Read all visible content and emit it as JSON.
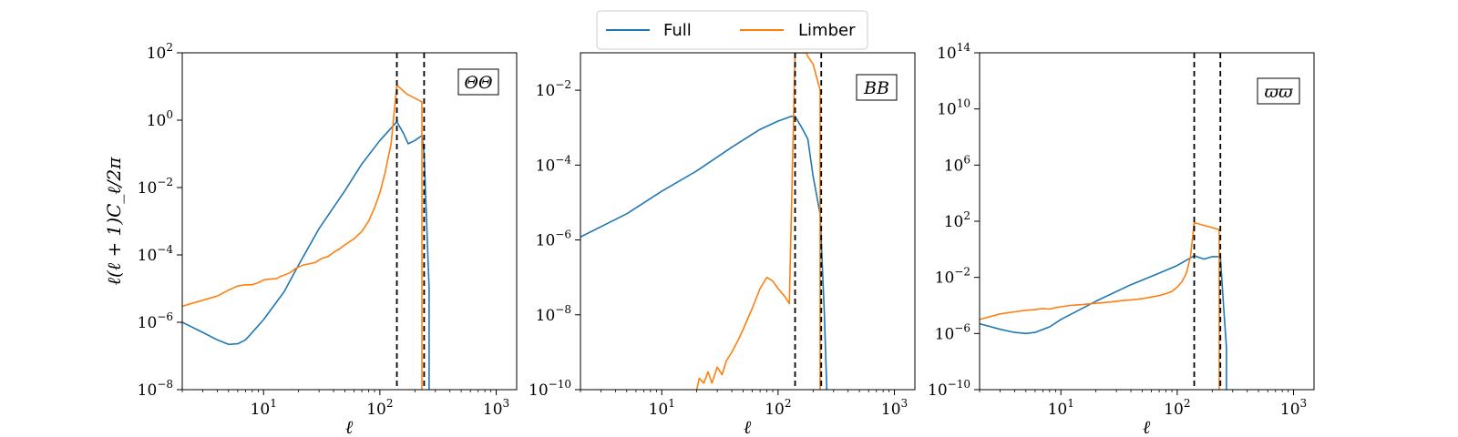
{
  "legend": {
    "items": [
      {
        "label": "Full",
        "color": "#1f77b4"
      },
      {
        "label": "Limber",
        "color": "#ff7f0e"
      }
    ]
  },
  "chart_data": [
    {
      "type": "line",
      "panel_label": "ΘΘ",
      "xlabel": "ℓ",
      "ylabel": "ℓ(ℓ + 1)C_ℓ/2π",
      "xscale": "log",
      "yscale": "log",
      "xlim": [
        2,
        1500
      ],
      "ylim": [
        1e-08,
        100
      ],
      "xticks": [
        {
          "v": 10,
          "base": "10",
          "exp": "1"
        },
        {
          "v": 100,
          "base": "10",
          "exp": "2"
        },
        {
          "v": 1000,
          "base": "10",
          "exp": "3"
        }
      ],
      "yticks": [
        {
          "v": 1e-08,
          "base": "10",
          "exp": "−8"
        },
        {
          "v": 1e-06,
          "base": "10",
          "exp": "−6"
        },
        {
          "v": 0.0001,
          "base": "10",
          "exp": "−4"
        },
        {
          "v": 0.01,
          "base": "10",
          "exp": "−2"
        },
        {
          "v": 1,
          "base": "10",
          "exp": "0"
        },
        {
          "v": 100,
          "base": "10",
          "exp": "2"
        }
      ],
      "vlines": [
        140,
        240
      ],
      "series": [
        {
          "name": "Full",
          "color": "#1f77b4",
          "points": [
            [
              2,
              1e-06
            ],
            [
              3,
              5e-07
            ],
            [
              4,
              3e-07
            ],
            [
              5,
              2.2e-07
            ],
            [
              6,
              2.3e-07
            ],
            [
              7,
              3e-07
            ],
            [
              8,
              5e-07
            ],
            [
              10,
              1.2e-06
            ],
            [
              15,
              8e-06
            ],
            [
              20,
              5e-05
            ],
            [
              30,
              0.0006
            ],
            [
              50,
              0.008
            ],
            [
              70,
              0.05
            ],
            [
              100,
              0.25
            ],
            [
              140,
              0.9
            ],
            [
              160,
              0.4
            ],
            [
              175,
              0.2
            ],
            [
              200,
              0.25
            ],
            [
              230,
              0.35
            ],
            [
              240,
              0.1
            ],
            [
              265,
              1e-05
            ],
            [
              265,
              1e-08
            ]
          ]
        },
        {
          "name": "Limber",
          "color": "#ff7f0e",
          "points": [
            [
              2,
              3e-06
            ],
            [
              3,
              4.5e-06
            ],
            [
              4,
              6e-06
            ],
            [
              5,
              9e-06
            ],
            [
              6,
              1.2e-05
            ],
            [
              7,
              1.3e-05
            ],
            [
              8,
              1.3e-05
            ],
            [
              9,
              1.5e-05
            ],
            [
              10,
              1.8e-05
            ],
            [
              11,
              1.9e-05
            ],
            [
              13,
              2e-05
            ],
            [
              14,
              2.3e-05
            ],
            [
              15,
              2.5e-05
            ],
            [
              17,
              3e-05
            ],
            [
              19,
              4e-05
            ],
            [
              22,
              5e-05
            ],
            [
              25,
              5.5e-05
            ],
            [
              28,
              6e-05
            ],
            [
              30,
              7e-05
            ],
            [
              32,
              8e-05
            ],
            [
              34,
              8.5e-05
            ],
            [
              36,
              9e-05
            ],
            [
              40,
              0.00012
            ],
            [
              45,
              0.00015
            ],
            [
              50,
              0.0002
            ],
            [
              60,
              0.0003
            ],
            [
              70,
              0.0005
            ],
            [
              80,
              0.001
            ],
            [
              90,
              0.0025
            ],
            [
              100,
              0.007
            ],
            [
              110,
              0.025
            ],
            [
              125,
              0.2
            ],
            [
              140,
              11
            ],
            [
              170,
              6
            ],
            [
              200,
              4.5
            ],
            [
              230,
              3.5
            ],
            [
              230,
              1e-08
            ]
          ]
        }
      ]
    },
    {
      "type": "line",
      "panel_label": "BB",
      "xlabel": "ℓ",
      "ylabel": "",
      "xscale": "log",
      "yscale": "log",
      "xlim": [
        2,
        1500
      ],
      "ylim": [
        1e-10,
        0.1
      ],
      "xticks": [
        {
          "v": 10,
          "base": "10",
          "exp": "1"
        },
        {
          "v": 100,
          "base": "10",
          "exp": "2"
        },
        {
          "v": 1000,
          "base": "10",
          "exp": "3"
        }
      ],
      "yticks": [
        {
          "v": 1e-10,
          "base": "10",
          "exp": "−10"
        },
        {
          "v": 1e-08,
          "base": "10",
          "exp": "−8"
        },
        {
          "v": 1e-06,
          "base": "10",
          "exp": "−6"
        },
        {
          "v": 0.0001,
          "base": "10",
          "exp": "−4"
        },
        {
          "v": 0.01,
          "base": "10",
          "exp": "−2"
        }
      ],
      "vlines": [
        140,
        235
      ],
      "series": [
        {
          "name": "Full",
          "color": "#1f77b4",
          "points": [
            [
              2,
              1.2e-06
            ],
            [
              5,
              5e-06
            ],
            [
              10,
              2e-05
            ],
            [
              20,
              7e-05
            ],
            [
              40,
              0.0003
            ],
            [
              70,
              0.0009
            ],
            [
              100,
              0.0015
            ],
            [
              130,
              0.002
            ],
            [
              140,
              0.002
            ],
            [
              160,
              0.001
            ],
            [
              180,
              0.0005
            ],
            [
              200,
              5e-05
            ],
            [
              230,
              5e-06
            ],
            [
              250,
              1e-08
            ],
            [
              262,
              1e-10
            ]
          ]
        },
        {
          "name": "Limber",
          "color": "#ff7f0e",
          "points": [
            [
              20,
              1e-10
            ],
            [
              21,
              2e-10
            ],
            [
              23,
              1.5e-10
            ],
            [
              25,
              3e-10
            ],
            [
              27,
              1.5e-10
            ],
            [
              30,
              4e-10
            ],
            [
              33,
              2.5e-10
            ],
            [
              36,
              6e-10
            ],
            [
              40,
              1e-09
            ],
            [
              45,
              2e-09
            ],
            [
              50,
              4e-09
            ],
            [
              60,
              1.5e-08
            ],
            [
              70,
              5e-08
            ],
            [
              80,
              1e-07
            ],
            [
              90,
              8e-08
            ],
            [
              100,
              5e-08
            ],
            [
              115,
              3e-08
            ],
            [
              125,
              2e-08
            ],
            [
              140,
              0.1
            ],
            [
              175,
              0.1
            ],
            [
              180,
              0.08
            ],
            [
              200,
              0.05
            ],
            [
              230,
              0.01
            ],
            [
              230,
              1e-10
            ]
          ]
        }
      ]
    },
    {
      "type": "line",
      "panel_label": "ϖϖ",
      "xlabel": "ℓ",
      "ylabel": "",
      "xscale": "log",
      "yscale": "log",
      "xlim": [
        2,
        1500
      ],
      "ylim": [
        1e-10,
        100000000000000.0
      ],
      "xticks": [
        {
          "v": 10,
          "base": "10",
          "exp": "1"
        },
        {
          "v": 100,
          "base": "10",
          "exp": "2"
        },
        {
          "v": 1000,
          "base": "10",
          "exp": "3"
        }
      ],
      "yticks": [
        {
          "v": 1e-10,
          "base": "10",
          "exp": "−10"
        },
        {
          "v": 1e-06,
          "base": "10",
          "exp": "−6"
        },
        {
          "v": 0.01,
          "base": "10",
          "exp": "−2"
        },
        {
          "v": 100,
          "base": "10",
          "exp": "2"
        },
        {
          "v": 1000000.0,
          "base": "10",
          "exp": "6"
        },
        {
          "v": 10000000000.0,
          "base": "10",
          "exp": "10"
        },
        {
          "v": 100000000000000.0,
          "base": "10",
          "exp": "14"
        }
      ],
      "vlines": [
        140,
        235
      ],
      "series": [
        {
          "name": "Full",
          "color": "#1f77b4",
          "points": [
            [
              2,
              5e-06
            ],
            [
              3,
              2e-06
            ],
            [
              4,
              1.2e-06
            ],
            [
              5,
              1e-06
            ],
            [
              6,
              1.2e-06
            ],
            [
              8,
              3e-06
            ],
            [
              10,
              1e-05
            ],
            [
              20,
              0.0002
            ],
            [
              40,
              0.003
            ],
            [
              70,
              0.02
            ],
            [
              100,
              0.07
            ],
            [
              140,
              0.35
            ],
            [
              170,
              0.2
            ],
            [
              200,
              0.3
            ],
            [
              235,
              0.3
            ],
            [
              250,
              0.0001
            ],
            [
              265,
              1e-07
            ],
            [
              265,
              1e-10
            ]
          ]
        },
        {
          "name": "Limber",
          "color": "#ff7f0e",
          "points": [
            [
              2,
              1e-05
            ],
            [
              3,
              2.5e-05
            ],
            [
              4,
              3.5e-05
            ],
            [
              5,
              4.5e-05
            ],
            [
              6,
              5e-05
            ],
            [
              7,
              6e-05
            ],
            [
              8,
              5.5e-05
            ],
            [
              9,
              7e-05
            ],
            [
              10,
              8e-05
            ],
            [
              12,
              0.0001
            ],
            [
              14,
              0.00011
            ],
            [
              16,
              0.00012
            ],
            [
              18,
              0.00013
            ],
            [
              20,
              0.00014
            ],
            [
              23,
              0.00016
            ],
            [
              26,
              0.00017
            ],
            [
              30,
              0.0002
            ],
            [
              35,
              0.00023
            ],
            [
              40,
              0.00025
            ],
            [
              50,
              0.0003
            ],
            [
              60,
              0.0004
            ],
            [
              70,
              0.0005
            ],
            [
              80,
              0.0007
            ],
            [
              90,
              0.001
            ],
            [
              100,
              0.002
            ],
            [
              110,
              0.005
            ],
            [
              120,
              0.02
            ],
            [
              130,
              0.3
            ],
            [
              140,
              80
            ],
            [
              170,
              50
            ],
            [
              200,
              35
            ],
            [
              230,
              25
            ],
            [
              230,
              1e-10
            ]
          ]
        }
      ]
    }
  ]
}
